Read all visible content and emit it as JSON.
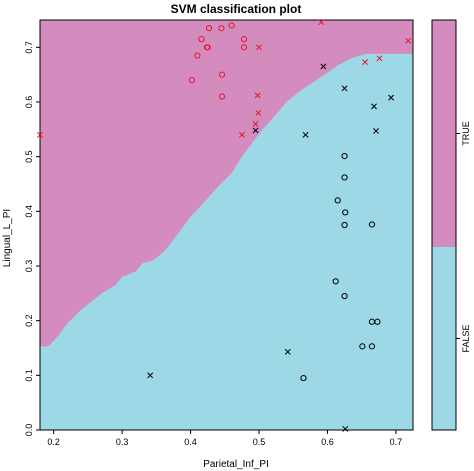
{
  "chart_data": {
    "type": "scatter",
    "title": "SVM classification plot",
    "xlabel": "Parietal_Inf_PI",
    "ylabel": "Lingual_L_PI",
    "xlim": [
      0.18,
      0.725
    ],
    "ylim": [
      0.0,
      0.75
    ],
    "xticks": [
      "0.2",
      "0.3",
      "0.4",
      "0.5",
      "0.6",
      "0.7"
    ],
    "yticks": [
      "0.0",
      "0.1",
      "0.2",
      "0.3",
      "0.4",
      "0.5",
      "0.6",
      "0.7"
    ],
    "colors": {
      "true_region": "#d48cbf",
      "false_region": "#9cd8e6",
      "true_points": "#e8152a",
      "false_points": "#000000"
    },
    "legend": {
      "position": "right",
      "levels": [
        "TRUE",
        "FALSE"
      ]
    },
    "decision_boundary": {
      "x": [
        0.18,
        0.192,
        0.205,
        0.22,
        0.24,
        0.26,
        0.27,
        0.29,
        0.3,
        0.32,
        0.33,
        0.345,
        0.36,
        0.37,
        0.385,
        0.4,
        0.415,
        0.44,
        0.46,
        0.475,
        0.49,
        0.505,
        0.52,
        0.54,
        0.565,
        0.59,
        0.615,
        0.635,
        0.655,
        0.68,
        0.725
      ],
      "y": [
        0.153,
        0.153,
        0.17,
        0.195,
        0.22,
        0.24,
        0.25,
        0.265,
        0.28,
        0.29,
        0.305,
        0.31,
        0.325,
        0.34,
        0.365,
        0.39,
        0.41,
        0.445,
        0.47,
        0.5,
        0.525,
        0.55,
        0.57,
        0.6,
        0.625,
        0.645,
        0.667,
        0.68,
        0.688,
        0.688,
        0.688
      ]
    },
    "upper_boundary": {
      "x": [
        0.6,
        0.64,
        0.68,
        0.7,
        0.725
      ],
      "y": [
        0.75,
        0.725,
        0.71,
        0.705,
        0.7
      ]
    },
    "series": [
      {
        "name": "TRUE",
        "points": [
          {
            "x": 0.424,
            "y": 0.7,
            "marker": "o"
          },
          {
            "x": 0.427,
            "y": 0.735,
            "marker": "o"
          },
          {
            "x": 0.445,
            "y": 0.735,
            "marker": "o"
          },
          {
            "x": 0.46,
            "y": 0.74,
            "marker": "o"
          },
          {
            "x": 0.478,
            "y": 0.715,
            "marker": "o"
          },
          {
            "x": 0.416,
            "y": 0.715,
            "marker": "o"
          },
          {
            "x": 0.425,
            "y": 0.7,
            "marker": "o"
          },
          {
            "x": 0.478,
            "y": 0.7,
            "marker": "o"
          },
          {
            "x": 0.41,
            "y": 0.685,
            "marker": "o"
          },
          {
            "x": 0.446,
            "y": 0.65,
            "marker": "o"
          },
          {
            "x": 0.402,
            "y": 0.64,
            "marker": "o"
          },
          {
            "x": 0.446,
            "y": 0.61,
            "marker": "o"
          },
          {
            "x": 0.5,
            "y": 0.7,
            "marker": "x"
          },
          {
            "x": 0.591,
            "y": 0.746,
            "marker": "x"
          },
          {
            "x": 0.655,
            "y": 0.673,
            "marker": "x"
          },
          {
            "x": 0.676,
            "y": 0.68,
            "marker": "x"
          },
          {
            "x": 0.718,
            "y": 0.712,
            "marker": "x"
          },
          {
            "x": 0.498,
            "y": 0.612,
            "marker": "x"
          },
          {
            "x": 0.499,
            "y": 0.58,
            "marker": "x"
          },
          {
            "x": 0.495,
            "y": 0.56,
            "marker": "x"
          },
          {
            "x": 0.475,
            "y": 0.54,
            "marker": "x"
          },
          {
            "x": 0.18,
            "y": 0.54,
            "marker": "x"
          }
        ]
      },
      {
        "name": "FALSE",
        "points": [
          {
            "x": 0.594,
            "y": 0.665,
            "marker": "x"
          },
          {
            "x": 0.625,
            "y": 0.625,
            "marker": "x"
          },
          {
            "x": 0.693,
            "y": 0.608,
            "marker": "x"
          },
          {
            "x": 0.668,
            "y": 0.592,
            "marker": "x"
          },
          {
            "x": 0.495,
            "y": 0.548,
            "marker": "x"
          },
          {
            "x": 0.671,
            "y": 0.547,
            "marker": "x"
          },
          {
            "x": 0.568,
            "y": 0.54,
            "marker": "x"
          },
          {
            "x": 0.341,
            "y": 0.1,
            "marker": "x"
          },
          {
            "x": 0.542,
            "y": 0.143,
            "marker": "x"
          },
          {
            "x": 0.626,
            "y": 0.002,
            "marker": "x"
          },
          {
            "x": 0.625,
            "y": 0.501,
            "marker": "o"
          },
          {
            "x": 0.625,
            "y": 0.462,
            "marker": "o"
          },
          {
            "x": 0.615,
            "y": 0.42,
            "marker": "o"
          },
          {
            "x": 0.626,
            "y": 0.398,
            "marker": "o"
          },
          {
            "x": 0.625,
            "y": 0.375,
            "marker": "o"
          },
          {
            "x": 0.665,
            "y": 0.376,
            "marker": "o"
          },
          {
            "x": 0.612,
            "y": 0.272,
            "marker": "o"
          },
          {
            "x": 0.625,
            "y": 0.245,
            "marker": "o"
          },
          {
            "x": 0.665,
            "y": 0.198,
            "marker": "o"
          },
          {
            "x": 0.673,
            "y": 0.198,
            "marker": "o"
          },
          {
            "x": 0.651,
            "y": 0.153,
            "marker": "o"
          },
          {
            "x": 0.665,
            "y": 0.153,
            "marker": "o"
          },
          {
            "x": 0.565,
            "y": 0.095,
            "marker": "o"
          }
        ]
      }
    ]
  }
}
